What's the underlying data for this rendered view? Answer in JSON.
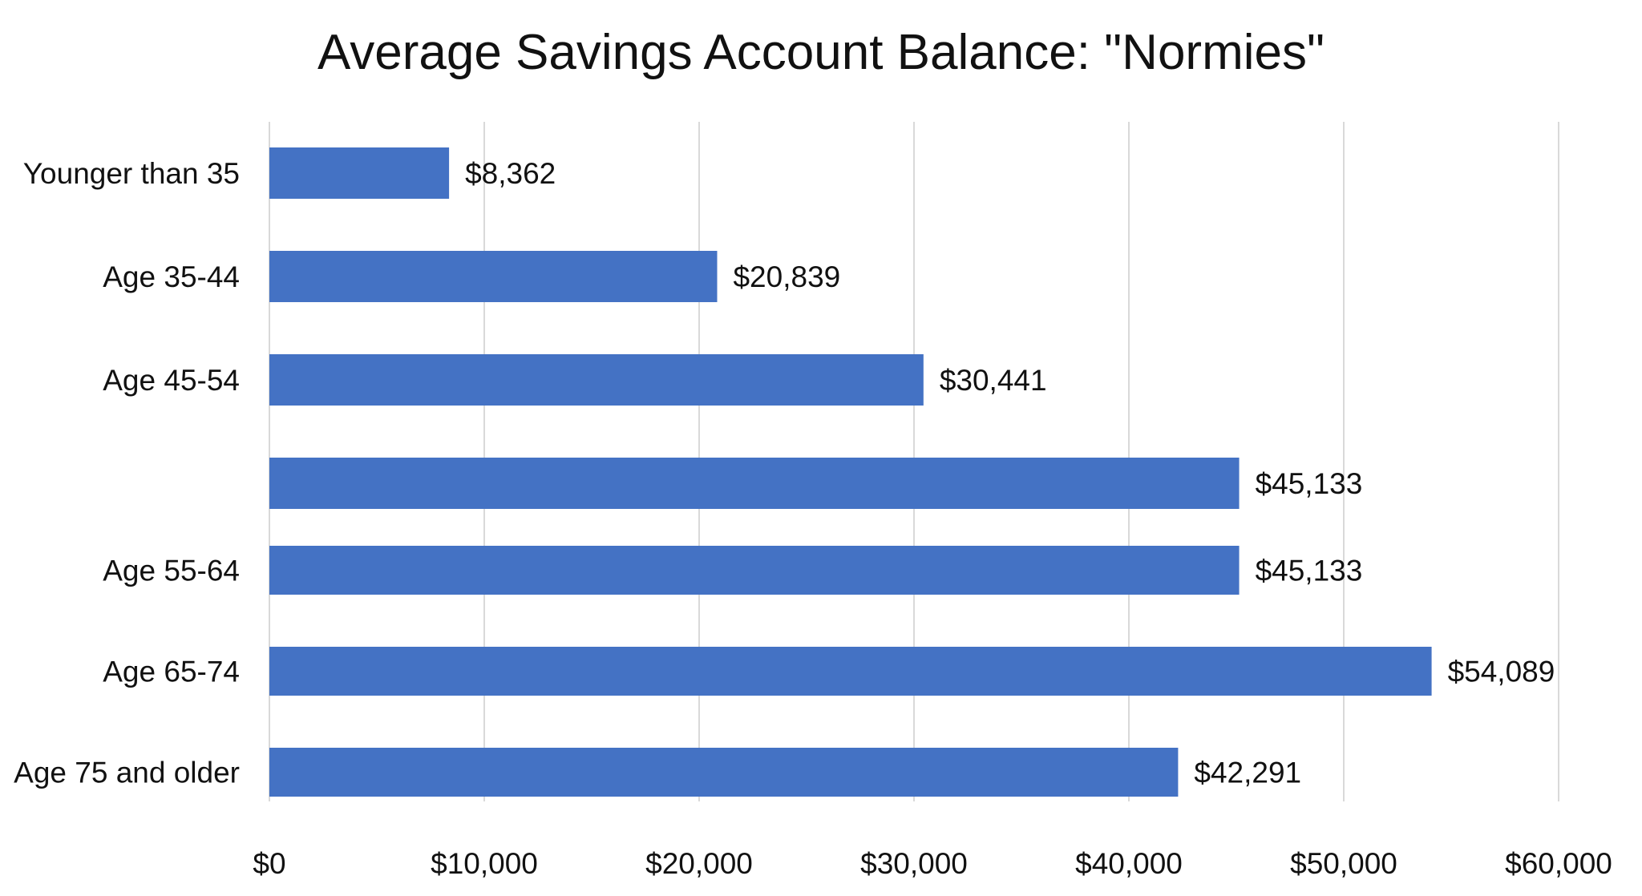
{
  "chart_data": {
    "type": "bar",
    "orientation": "horizontal",
    "title": "Average Savings Account Balance: \"Normies\"",
    "xlabel": "",
    "ylabel": "",
    "categories": [
      "Younger than 35",
      "Age 35-44",
      "Age 45-54",
      "",
      "Age 55-64",
      "Age 65-74",
      "Age 75 and older"
    ],
    "values": [
      8362,
      20839,
      30441,
      45133,
      45133,
      54089,
      42291
    ],
    "value_labels": [
      "$8,362",
      "$20,839",
      "$30,441",
      "$45,133",
      "$45,133",
      "$54,089",
      "$42,291"
    ],
    "xlim": [
      0,
      60000
    ],
    "x_ticks": [
      0,
      10000,
      20000,
      30000,
      40000,
      50000,
      60000
    ],
    "x_tick_labels": [
      "$0",
      "$10,000",
      "$20,000",
      "$30,000",
      "$40,000",
      "$50,000",
      "$60,000"
    ],
    "grid": "vertical",
    "legend": "none",
    "colors": {
      "bar": "#4472c4",
      "grid": "#d9d9d9",
      "text": "#111111"
    }
  }
}
